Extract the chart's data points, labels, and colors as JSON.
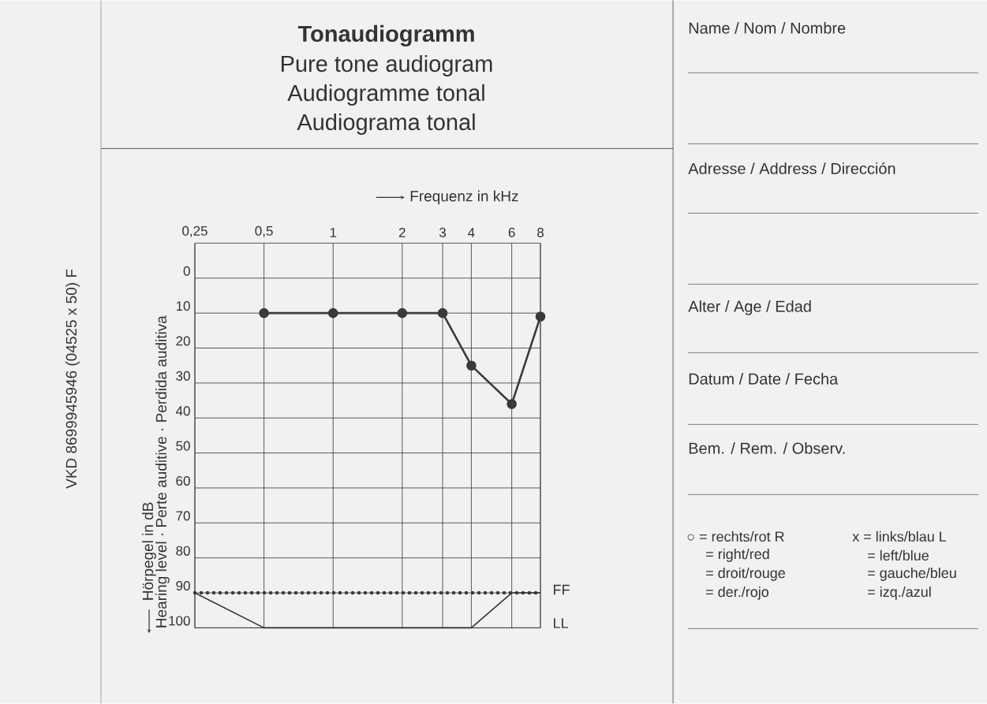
{
  "chart_data": {
    "type": "line",
    "title": "Tonaudiogramm",
    "subtitle": "Pure tone audiogram",
    "xlabel": "Frequenz in kHz",
    "ylabel": "Hörpegel in dB",
    "annotations": [
      "Audiogramme tonal",
      "Audiograma tonal",
      "Name / Nom / Nombre",
      "Adresse / Address / Dirección",
      "Alter / Age / Edad",
      "Datum / Date / Fecha",
      "Bem. / Rem. / Observ.",
      "○ = rechts/rot R",
      "x = links/blau L",
      "= right/red",
      "= left/blue",
      "= droit/rouge",
      "= gauche/bleu",
      "= der./rojo",
      "= izq./azul",
      "VKD 8699945946 (04525 x 50) F",
      "Hearing level · Perte auditive · Perdida auditiva"
    ],
    "log": "x",
    "xlim": [
      0.25,
      8
    ],
    "ylim": [
      100,
      -10
    ],
    "xticks": [
      {
        "value": 0.25,
        "label": "0,25"
      },
      {
        "value": 0.5,
        "label": "0,5"
      },
      1,
      2,
      3,
      4,
      6,
      8
    ],
    "yticks": [
      0,
      10,
      20,
      30,
      40,
      50,
      60,
      70,
      80,
      90,
      100
    ],
    "grid": true,
    "marker": "circle",
    "line_style": "solid",
    "ref_lines": [
      {
        "axis": "y",
        "value": 90,
        "label": "FF",
        "line_style": "dotted",
        "color": "#3a3a3a"
      }
    ],
    "series": [
      {
        "color": "#3a3a3a",
        "x": [
          0.5,
          1,
          2,
          3,
          4,
          6,
          8
        ],
        "values": [
          10,
          10,
          10,
          10,
          25,
          36,
          11
        ]
      },
      {
        "name": "LL",
        "color": "#333333",
        "marker": "none",
        "x": [
          0.25,
          0.5,
          4,
          6,
          8
        ],
        "values": [
          90,
          100,
          100,
          90,
          90
        ]
      }
    ]
  }
}
